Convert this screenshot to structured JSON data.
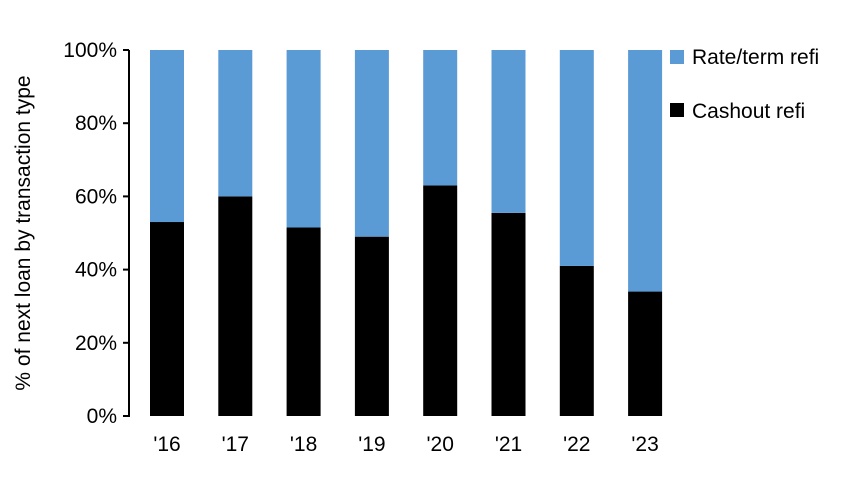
{
  "chart_data": {
    "type": "bar",
    "stacked": true,
    "categories": [
      "'16",
      "'17",
      "'18",
      "'19",
      "'20",
      "'21",
      "'22",
      "'23"
    ],
    "series": [
      {
        "name": "Cashout refi",
        "color": "#000000",
        "values": [
          53,
          60,
          51.5,
          49,
          63,
          55.5,
          41,
          34
        ]
      },
      {
        "name": "Rate/term refi",
        "color": "#5B9BD5",
        "values": [
          47,
          40,
          48.5,
          51,
          37,
          44.5,
          59,
          66
        ]
      }
    ],
    "ylabel": "% of next loan by transaction type",
    "xlabel": "",
    "ylim": [
      0,
      100
    ],
    "yticks": [
      "0%",
      "20%",
      "40%",
      "60%",
      "80%",
      "100%"
    ],
    "grid": false,
    "legend_position": "right"
  }
}
